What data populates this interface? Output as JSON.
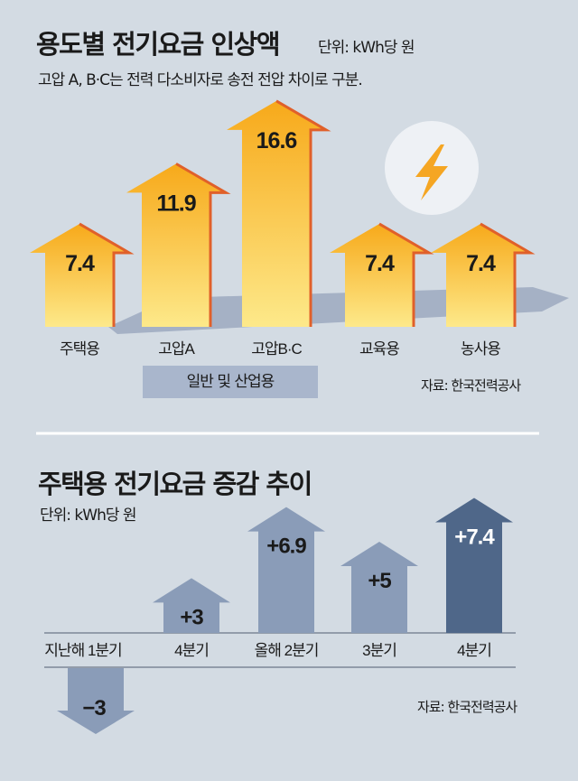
{
  "chart_data": [
    {
      "type": "bar",
      "title": "용도별 전기요금 인상액",
      "unit": "단위: kWh당 원",
      "subtitle": "고압 A, B·C는 전력 다소비자로 송전 전압 차이로 구분.",
      "categories": [
        "주택용",
        "고압A",
        "고압B·C",
        "교육용",
        "농사용"
      ],
      "values": [
        7.4,
        11.9,
        16.6,
        7.4,
        7.4
      ],
      "value_labels": [
        "7.4",
        "11.9",
        "16.6",
        "7.4",
        "7.4"
      ],
      "group_label": "일반 및 산업용",
      "source": "자료: 한국전력공사",
      "icon": "lightning-icon",
      "colors": {
        "bar_top": "#f7a91a",
        "bar_bottom": "#fde98a",
        "edge": "#e0602a"
      }
    },
    {
      "type": "bar",
      "title": "주택용 전기요금 증감 추이",
      "unit": "단위: kWh당 원",
      "categories": [
        "지난해 1분기",
        "4분기",
        "올해 2분기",
        "3분기",
        "4분기"
      ],
      "values": [
        -3,
        3,
        6.9,
        5,
        7.4
      ],
      "value_labels": [
        "−3",
        "+3",
        "+6.9",
        "+5",
        "+7.4"
      ],
      "source": "자료: 한국전력공사",
      "colors": {
        "normal": "#8a9cb8",
        "highlight": "#4f6789"
      }
    }
  ]
}
